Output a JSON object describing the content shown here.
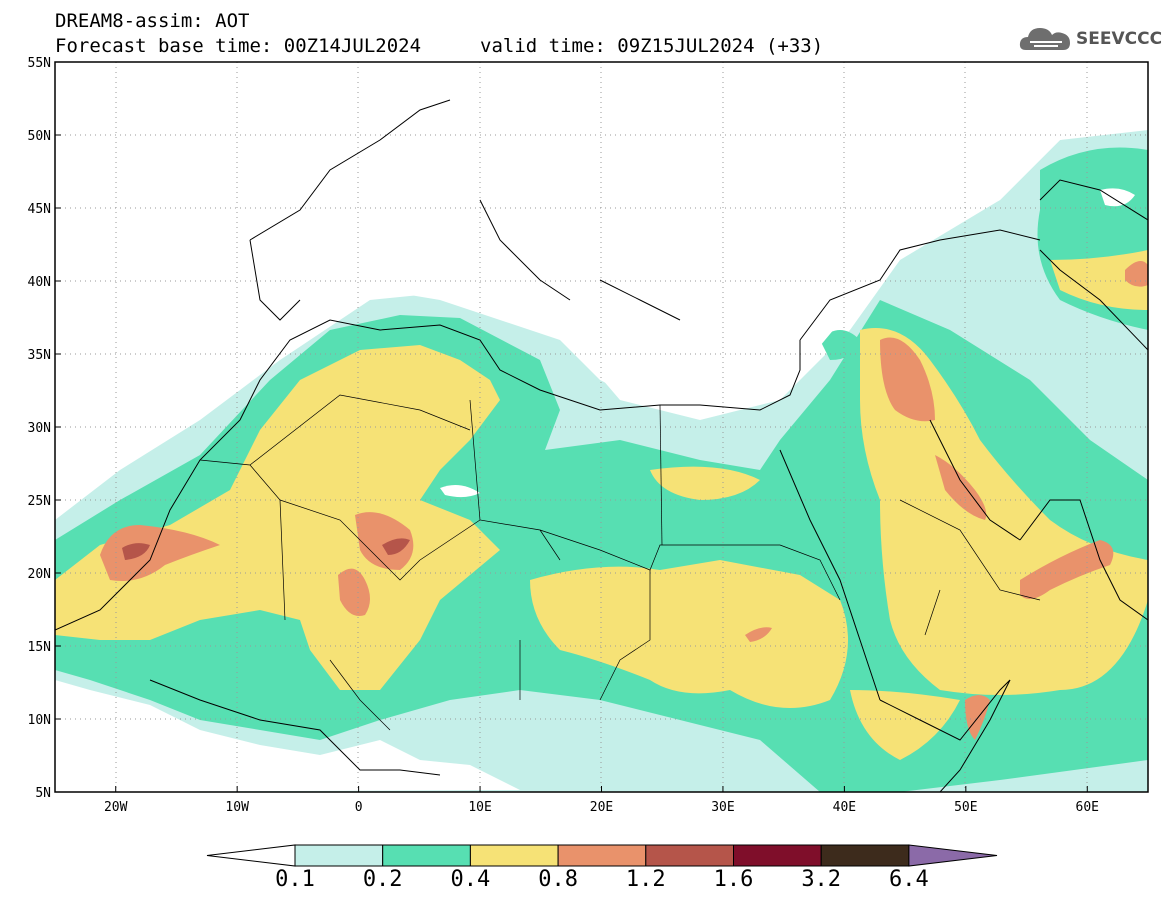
{
  "header": {
    "title": "DREAM8-assim: AOT",
    "base_time": "Forecast base time: 00Z14JUL2024",
    "valid_time": "valid time: 09Z15JUL2024 (+33)"
  },
  "logo": {
    "text": "SEEVCCC",
    "icon": "cloud-icon"
  },
  "map": {
    "lon_range": [
      -25,
      65
    ],
    "lat_range": [
      5,
      55
    ],
    "lat_ticks": [
      "55N",
      "50N",
      "45N",
      "40N",
      "35N",
      "30N",
      "25N",
      "20N",
      "15N",
      "10N",
      "5N"
    ],
    "lon_ticks": [
      "20W",
      "10W",
      "0",
      "10E",
      "20E",
      "30E",
      "40E",
      "50E",
      "60E"
    ],
    "grid": "dotted"
  },
  "colorbar": {
    "levels": [
      "0.1",
      "0.2",
      "0.4",
      "0.8",
      "1.2",
      "1.6",
      "3.2",
      "6.4"
    ],
    "colors": [
      "#ffffff",
      "#c5efe9",
      "#57dfb2",
      "#f6e276",
      "#e9926b",
      "#b5554a",
      "#7f0e2a",
      "#3d2b1c",
      "#8b6aa8"
    ]
  }
}
